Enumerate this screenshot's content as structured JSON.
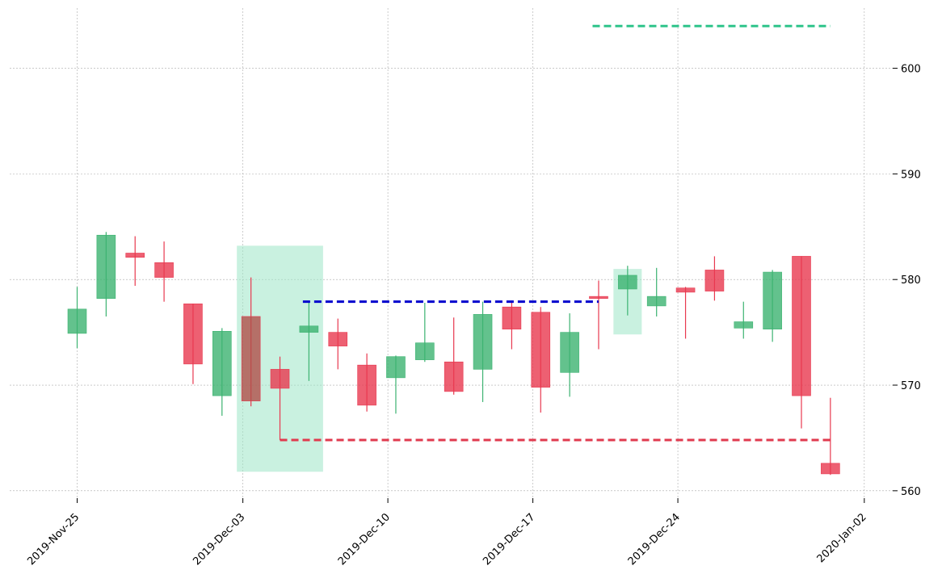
{
  "chart_data": {
    "type": "candlestick",
    "title": "",
    "xlabel": "",
    "ylabel": "",
    "ylim": [
      559.3,
      605.7
    ],
    "grid": true,
    "y_ticks": [
      560,
      570,
      580,
      590,
      600
    ],
    "y_tick_labels": [
      "560",
      "570",
      "580",
      "590",
      "600"
    ],
    "x_tick_labels": [
      {
        "date": "2019-11-25",
        "label": "2019-Nov-25"
      },
      {
        "date": "2019-12-03",
        "label": "2019-Dec-03"
      },
      {
        "date": "2019-12-10",
        "label": "2019-Dec-10"
      },
      {
        "date": "2019-12-17",
        "label": "2019-Dec-17"
      },
      {
        "date": "2019-12-24",
        "label": "2019-Dec-24"
      },
      {
        "date": "2020-01-02",
        "label": "2020-Jan-02"
      }
    ],
    "colors": {
      "up": "#3cb371",
      "down": "#e8384f",
      "highlight_fill": "#9de6c7",
      "resistance_line": "#0000cd",
      "support_line": "#e03a4e",
      "target_line": "#2ec48a",
      "grid": "#aaaaaa"
    },
    "candles": [
      {
        "date": "2019-11-25",
        "open": 574.9,
        "high": 579.3,
        "low": 573.5,
        "close": 577.2
      },
      {
        "date": "2019-11-26",
        "open": 578.2,
        "high": 584.5,
        "low": 576.5,
        "close": 584.2
      },
      {
        "date": "2019-11-27",
        "open": 582.5,
        "high": 584.1,
        "low": 579.4,
        "close": 582.1
      },
      {
        "date": "2019-11-29",
        "open": 581.6,
        "high": 583.6,
        "low": 577.9,
        "close": 580.2
      },
      {
        "date": "2019-12-02",
        "open": 577.7,
        "high": 577.7,
        "low": 570.1,
        "close": 572.0
      },
      {
        "date": "2019-12-03",
        "open": 569.0,
        "high": 575.4,
        "low": 567.1,
        "close": 575.1
      },
      {
        "date": "2019-12-04",
        "open": 576.5,
        "high": 580.2,
        "low": 568.0,
        "close": 568.5
      },
      {
        "date": "2019-12-05",
        "open": 571.5,
        "high": 572.7,
        "low": 564.8,
        "close": 569.7
      },
      {
        "date": "2019-12-06",
        "open": 575.0,
        "high": 577.9,
        "low": 570.4,
        "close": 575.6
      },
      {
        "date": "2019-12-09",
        "open": 575.0,
        "high": 576.3,
        "low": 571.5,
        "close": 573.7
      },
      {
        "date": "2019-12-10",
        "open": 571.9,
        "high": 573.0,
        "low": 567.5,
        "close": 568.1
      },
      {
        "date": "2019-12-11",
        "open": 570.7,
        "high": 572.8,
        "low": 567.3,
        "close": 572.7
      },
      {
        "date": "2019-12-12",
        "open": 572.4,
        "high": 577.8,
        "low": 572.2,
        "close": 574.0
      },
      {
        "date": "2019-12-13",
        "open": 572.2,
        "high": 576.4,
        "low": 569.1,
        "close": 569.4
      },
      {
        "date": "2019-12-16",
        "open": 571.5,
        "high": 577.9,
        "low": 568.4,
        "close": 576.7
      },
      {
        "date": "2019-12-17",
        "open": 577.4,
        "high": 578.0,
        "low": 573.4,
        "close": 575.3
      },
      {
        "date": "2019-12-18",
        "open": 576.9,
        "high": 577.4,
        "low": 567.4,
        "close": 569.8
      },
      {
        "date": "2019-12-19",
        "open": 571.2,
        "high": 576.8,
        "low": 568.9,
        "close": 575.0
      },
      {
        "date": "2019-12-20",
        "open": 578.4,
        "high": 579.9,
        "low": 573.4,
        "close": 578.2
      },
      {
        "date": "2019-12-23",
        "open": 579.1,
        "high": 581.3,
        "low": 576.6,
        "close": 580.4
      },
      {
        "date": "2019-12-24",
        "open": 577.5,
        "high": 581.1,
        "low": 576.5,
        "close": 578.4
      },
      {
        "date": "2019-12-26",
        "open": 579.2,
        "high": 579.3,
        "low": 574.4,
        "close": 578.8
      },
      {
        "date": "2019-12-27",
        "open": 580.9,
        "high": 582.2,
        "low": 578.0,
        "close": 578.9
      },
      {
        "date": "2019-12-30",
        "open": 575.4,
        "high": 577.9,
        "low": 574.4,
        "close": 576.0
      },
      {
        "date": "2019-12-31",
        "open": 575.3,
        "high": 580.9,
        "low": 574.1,
        "close": 580.7
      },
      {
        "date": "2020-01-02",
        "open": 582.2,
        "high": 582.2,
        "low": 565.9,
        "close": 569.0
      },
      {
        "date": "2020-01-03",
        "open": 562.6,
        "high": 568.8,
        "low": 561.5,
        "close": 561.6
      }
    ],
    "highlighted_candles": [
      "2019-12-04"
    ],
    "highlight_regions": [
      {
        "from_index": 6,
        "to_index": 8,
        "y_low": 561.8,
        "y_high": 583.2
      },
      {
        "from_index": 19,
        "to_index": 19,
        "y_low": 574.8,
        "y_high": 581.0
      }
    ],
    "horizontal_lines": [
      {
        "role": "resistance",
        "y": 577.9,
        "from_index": 8,
        "to_index": 18
      },
      {
        "role": "support",
        "y": 564.8,
        "from_index": 7,
        "to_index": 26
      },
      {
        "role": "target",
        "y": 604.0,
        "from_index": 18,
        "to_index": 26
      }
    ]
  }
}
